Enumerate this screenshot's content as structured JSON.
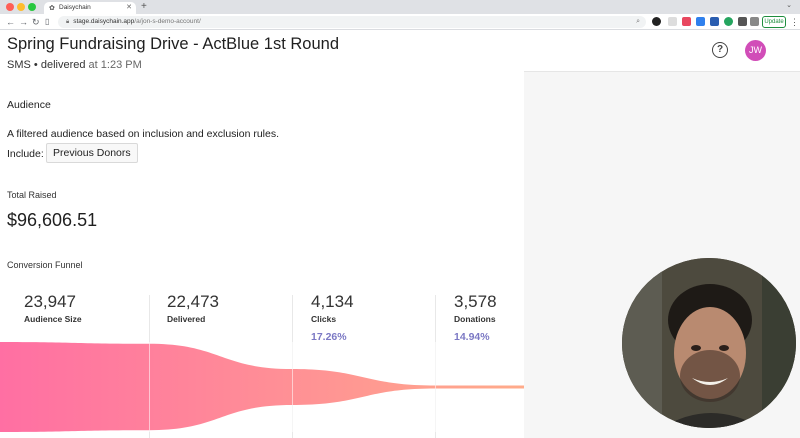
{
  "browser": {
    "tab_title": "Daisychain",
    "url_host": "stage.daisychain.app",
    "url_path": "/a/jon-s-demo-account/",
    "update_label": "Update"
  },
  "page": {
    "title": "Spring Fundraising Drive - ActBlue 1st Round",
    "channel": "SMS",
    "status": "delivered",
    "time_prefix": "at",
    "time": "1:23 PM"
  },
  "header": {
    "help_symbol": "?",
    "avatar_initials": "JW"
  },
  "audience": {
    "heading": "Audience",
    "description": "A filtered audience based on inclusion and exclusion rules.",
    "include_label": "Include:",
    "include_chip": "Previous Donors"
  },
  "total": {
    "heading": "Total Raised",
    "value": "$96,606.51"
  },
  "funnel": {
    "heading": "Conversion Funnel",
    "stages": [
      {
        "number": "23,947",
        "label": "Audience Size",
        "percent": ""
      },
      {
        "number": "22,473",
        "label": "Delivered",
        "percent": ""
      },
      {
        "number": "4,134",
        "label": "Clicks",
        "percent": "17.26%"
      },
      {
        "number": "3,578",
        "label": "Donations",
        "percent": "14.94%"
      }
    ]
  },
  "colors": {
    "funnel_start": "#ff6fa3",
    "funnel_end": "#ffab8a",
    "accent_percent": "#7b78c4",
    "avatar": "#d14db8"
  }
}
